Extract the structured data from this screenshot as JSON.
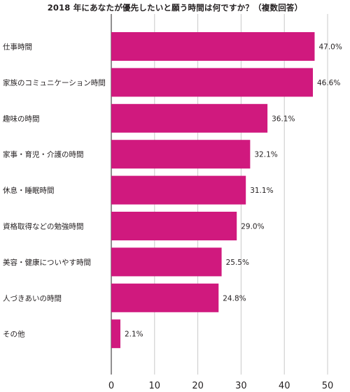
{
  "chart_data": {
    "type": "bar",
    "orientation": "horizontal",
    "title": "2018 年にあなたが優先したいと願う時間は何ですか？（複数回答）",
    "categories": [
      "仕事時間",
      "家族のコミュニケーション時間",
      "趣味の時間",
      "家事・育児・介護の時間",
      "休息・睡眠時間",
      "資格取得などの勉強時間",
      "美容・健康についやす時間",
      "人づきあいの時間",
      "その他"
    ],
    "values": [
      47.0,
      46.6,
      36.1,
      32.1,
      31.1,
      29.0,
      25.5,
      24.8,
      2.1
    ],
    "value_labels": [
      "47.0%",
      "46.6%",
      "36.1%",
      "32.1%",
      "31.1%",
      "29.0%",
      "25.5%",
      "24.8%",
      "2.1%"
    ],
    "xlim": [
      0,
      50
    ],
    "xticks": [
      0,
      10,
      20,
      30,
      40,
      50
    ],
    "xtick_labels": [
      "0",
      "10",
      "20",
      "30",
      "40",
      "50"
    ],
    "grid": true,
    "bar_color": "#d0197e",
    "xlabel": "",
    "ylabel": ""
  }
}
